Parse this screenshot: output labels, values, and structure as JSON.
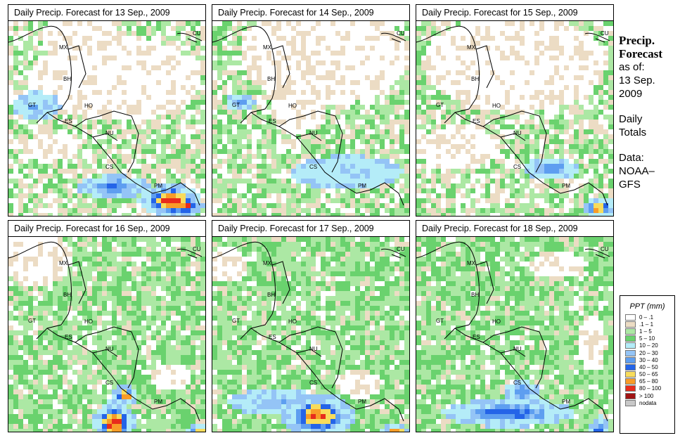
{
  "panels": [
    {
      "title": "Daily Precip. Forecast for  13 Sep., 2009",
      "pattern": "d13"
    },
    {
      "title": "Daily Precip. Forecast for  14 Sep., 2009",
      "pattern": "d14"
    },
    {
      "title": "Daily Precip. Forecast for  15 Sep., 2009",
      "pattern": "d15"
    },
    {
      "title": "Daily Precip. Forecast for  16 Sep., 2009",
      "pattern": "d16"
    },
    {
      "title": "Daily Precip. Forecast for  17 Sep., 2009",
      "pattern": "d17"
    },
    {
      "title": "Daily Precip. Forecast for  18 Sep., 2009",
      "pattern": "d18"
    }
  ],
  "country_labels": [
    "CU",
    "MX",
    "BH",
    "GT",
    "HO",
    "ES",
    "NU",
    "CS",
    "PM"
  ],
  "side": {
    "title_line1": "Precip.",
    "title_line2": "Forecast",
    "asof": "as of:",
    "date1": "13 Sep.",
    "date2": "2009",
    "totals1": "Daily",
    "totals2": "Totals",
    "data1": "Data:",
    "data2": "NOAA–",
    "data3": "GFS"
  },
  "legend": {
    "title": "PPT (mm)",
    "items": [
      {
        "label": "0 – .1",
        "color": "#ffffff"
      },
      {
        "label": ".1 – 1",
        "color": "#ecdcc4"
      },
      {
        "label": "1 – 5",
        "color": "#ace8a4"
      },
      {
        "label": "5 – 10",
        "color": "#6ad26e"
      },
      {
        "label": "10 – 20",
        "color": "#b4ecf8"
      },
      {
        "label": "20 – 30",
        "color": "#94c4f6"
      },
      {
        "label": "30 – 40",
        "color": "#5e9ef0"
      },
      {
        "label": "40 – 50",
        "color": "#2464e8"
      },
      {
        "label": "50 – 65",
        "color": "#f8dc5c"
      },
      {
        "label": "65 – 80",
        "color": "#f89c28"
      },
      {
        "label": "80 – 100",
        "color": "#e82c1c"
      },
      {
        "label": "> 100",
        "color": "#a01414"
      },
      {
        "label": "nodata",
        "color": "#c8c8c8"
      }
    ]
  }
}
